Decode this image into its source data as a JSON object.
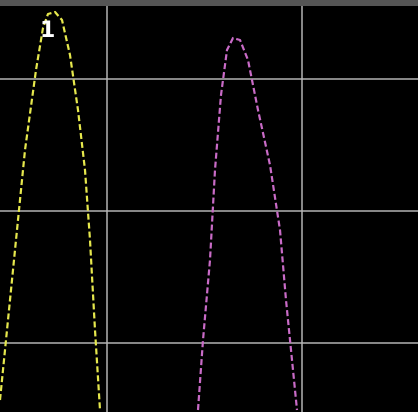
{
  "screen": {
    "background": "#000000",
    "grid_color": "#b4b4b4",
    "top_bar_color": "#555555",
    "vertical_divisions": 3,
    "horizontal_divisions": 4
  },
  "marker": {
    "label": "1"
  },
  "traces": [
    {
      "channel": 1,
      "color": "#e6e84d",
      "style": "dashed"
    },
    {
      "channel": 2,
      "color": "#c96bc7",
      "style": "dashed"
    }
  ]
}
